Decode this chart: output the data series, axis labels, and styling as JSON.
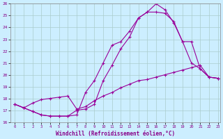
{
  "xlabel": "Windchill (Refroidissement éolien,°C)",
  "bg_color": "#cceeff",
  "grid_color": "#aacccc",
  "line_color": "#990099",
  "xlim": [
    -0.5,
    23.3
  ],
  "ylim": [
    16,
    26
  ],
  "xticks": [
    0,
    1,
    2,
    3,
    4,
    5,
    6,
    7,
    8,
    9,
    10,
    11,
    12,
    13,
    14,
    15,
    16,
    17,
    18,
    19,
    20,
    21,
    22,
    23
  ],
  "yticks": [
    16,
    17,
    18,
    19,
    20,
    21,
    22,
    23,
    24,
    25,
    26
  ],
  "line1_x": [
    0,
    1,
    2,
    3,
    4,
    5,
    6,
    7,
    8,
    9,
    10,
    11,
    12,
    13,
    14,
    15,
    16,
    17,
    18,
    19,
    20,
    21,
    22,
    23
  ],
  "line1_y": [
    17.5,
    17.2,
    16.9,
    16.6,
    16.5,
    16.5,
    16.5,
    16.6,
    18.5,
    19.5,
    21.0,
    22.5,
    22.8,
    23.7,
    24.8,
    25.3,
    26.0,
    25.5,
    24.4,
    22.8,
    22.8,
    20.5,
    19.8,
    19.7
  ],
  "line2_x": [
    0,
    1,
    2,
    3,
    4,
    5,
    6,
    7,
    8,
    9,
    10,
    11,
    12,
    13,
    14,
    15,
    16,
    17,
    18,
    19,
    20,
    21,
    22,
    23
  ],
  "line2_y": [
    17.5,
    17.2,
    16.9,
    16.6,
    16.5,
    16.5,
    16.5,
    17.0,
    17.1,
    17.5,
    19.5,
    20.8,
    22.2,
    23.2,
    24.8,
    25.3,
    25.3,
    25.2,
    24.5,
    22.8,
    21.0,
    20.5,
    19.8,
    19.7
  ],
  "line3_x": [
    0,
    1,
    2,
    3,
    4,
    5,
    6,
    7,
    8,
    9,
    10,
    11,
    12,
    13,
    14,
    15,
    16,
    17,
    18,
    19,
    20,
    21,
    22,
    23
  ],
  "line3_y": [
    17.5,
    17.2,
    17.6,
    17.9,
    18.0,
    18.1,
    18.2,
    17.1,
    17.3,
    17.8,
    18.2,
    18.5,
    18.9,
    19.2,
    19.5,
    19.6,
    19.8,
    20.0,
    20.2,
    20.4,
    20.6,
    20.8,
    19.8,
    19.7
  ]
}
